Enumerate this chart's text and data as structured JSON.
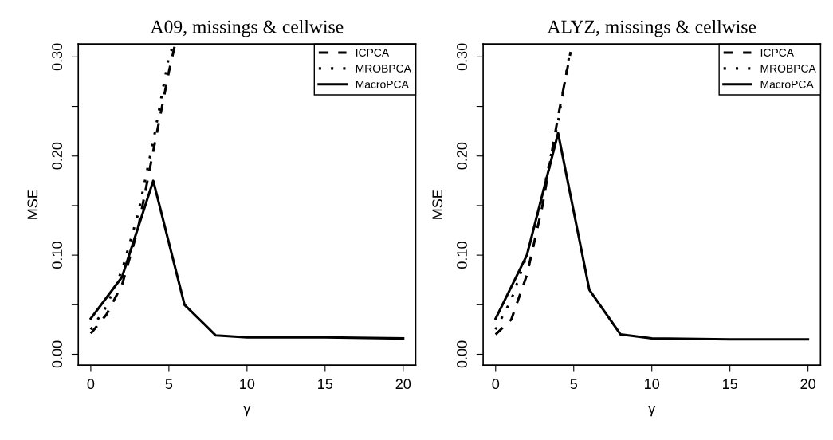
{
  "chart_data": [
    {
      "type": "line",
      "title": "A09, missings & cellwise",
      "xlabel": "γ",
      "ylabel": "MSE",
      "xlim": [
        -0.8,
        20.8
      ],
      "ylim": [
        -0.011,
        0.313
      ],
      "xticks": [
        0,
        5,
        10,
        15,
        20
      ],
      "yticks": [
        {
          "value": 0.0,
          "label": "0.00"
        },
        {
          "value": 0.05,
          "label": null
        },
        {
          "value": 0.1,
          "label": "0.10"
        },
        {
          "value": 0.15,
          "label": null
        },
        {
          "value": 0.2,
          "label": "0.20"
        },
        {
          "value": 0.25,
          "label": null
        },
        {
          "value": 0.3,
          "label": "0.30"
        }
      ],
      "legend": "top right",
      "grid": false,
      "series": [
        {
          "name": "ICPCA",
          "color": "#000000",
          "line_style": "dashed",
          "x": [
            0,
            1,
            2,
            3,
            4,
            5,
            5.4
          ],
          "values": [
            0.021,
            0.04,
            0.07,
            0.125,
            0.205,
            0.285,
            0.313
          ]
        },
        {
          "name": "MROBPCA",
          "color": "#000000",
          "line_style": "dotted",
          "x": [
            0,
            1,
            2,
            3,
            4,
            5,
            5.3
          ],
          "values": [
            0.025,
            0.048,
            0.085,
            0.14,
            0.215,
            0.3,
            0.313
          ]
        },
        {
          "name": "MacroPCA",
          "color": "#000000",
          "line_style": "solid",
          "x": [
            0,
            2,
            4,
            6,
            8,
            10,
            15,
            20
          ],
          "values": [
            0.036,
            0.078,
            0.175,
            0.05,
            0.019,
            0.017,
            0.017,
            0.016
          ]
        }
      ]
    },
    {
      "type": "line",
      "title": "ALYZ, missings & cellwise",
      "xlabel": "γ",
      "ylabel": "MSE",
      "xlim": [
        -0.8,
        20.8
      ],
      "ylim": [
        -0.011,
        0.313
      ],
      "xticks": [
        0,
        5,
        10,
        15,
        20
      ],
      "yticks": [
        {
          "value": 0.0,
          "label": "0.00"
        },
        {
          "value": 0.05,
          "label": null
        },
        {
          "value": 0.1,
          "label": "0.10"
        },
        {
          "value": 0.15,
          "label": null
        },
        {
          "value": 0.2,
          "label": "0.20"
        },
        {
          "value": 0.25,
          "label": null
        },
        {
          "value": 0.3,
          "label": "0.30"
        }
      ],
      "legend": "top right",
      "grid": false,
      "series": [
        {
          "name": "ICPCA",
          "color": "#000000",
          "line_style": "dashed",
          "x": [
            0,
            1,
            2,
            3,
            4,
            4.8
          ],
          "values": [
            0.02,
            0.035,
            0.08,
            0.15,
            0.24,
            0.305
          ]
        },
        {
          "name": "MROBPCA",
          "color": "#000000",
          "line_style": "dotted",
          "x": [
            0,
            1,
            2,
            3,
            4,
            4.7
          ],
          "values": [
            0.025,
            0.055,
            0.1,
            0.16,
            0.235,
            0.3
          ]
        },
        {
          "name": "MacroPCA",
          "color": "#000000",
          "line_style": "solid",
          "x": [
            0,
            2,
            4,
            6,
            8,
            10,
            15,
            20
          ],
          "values": [
            0.036,
            0.1,
            0.223,
            0.065,
            0.02,
            0.016,
            0.015,
            0.015
          ]
        }
      ]
    }
  ]
}
